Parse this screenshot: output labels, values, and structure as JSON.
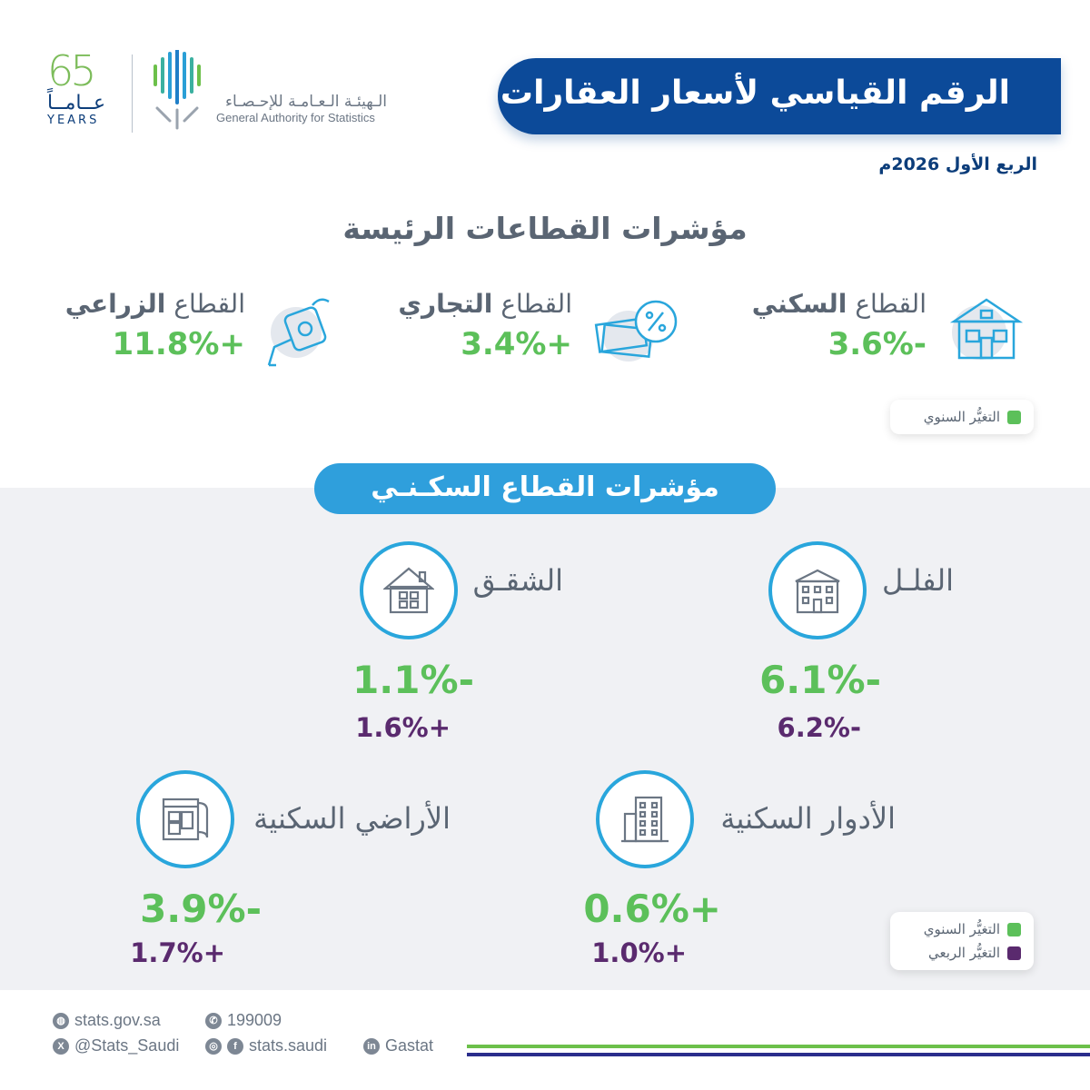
{
  "header": {
    "anniv_number": "65",
    "anniv_ar": "عــامــاً",
    "anniv_en": "YEARS",
    "org_ar": "الـهيئـة الـعـامـة للإحـصـاء",
    "org_en": "General Authority for Statistics",
    "title": "الرقم القياسي لأسعار العقارات",
    "period": "الربع الأول 2026م"
  },
  "main_sectors": {
    "heading": "مؤشرات القطاعات الرئيسة",
    "items": [
      {
        "prefix": "القطاع",
        "name": "السكني",
        "value": "-3.6%",
        "icon": "residential-building-icon"
      },
      {
        "prefix": "القطاع",
        "name": "التجاري",
        "value": "+3.4%",
        "icon": "money-percent-icon"
      },
      {
        "prefix": "القطاع",
        "name": "الزراعي",
        "value": "+11.8%",
        "icon": "watering-can-icon"
      }
    ],
    "legend_annual": "التغيُّر السنوي"
  },
  "residential": {
    "heading": "مؤشرات القطاع السكـنـي",
    "items": [
      {
        "label": "الفلـل",
        "annual": "-6.1%",
        "quarterly": "-6.2%",
        "icon": "villa-icon"
      },
      {
        "label": "الشقـق",
        "annual": "-1.1%",
        "quarterly": "+1.6%",
        "icon": "apartment-house-icon"
      },
      {
        "label": "الأدوار السكنية",
        "annual": "+0.6%",
        "quarterly": "+1.0%",
        "icon": "tower-building-icon"
      },
      {
        "label": "الأراضي السكنية",
        "annual": "-3.9%",
        "quarterly": "+1.7%",
        "icon": "land-plan-icon"
      }
    ],
    "legend_annual": "التغيُّر السنوي",
    "legend_quarterly": "التغيُّر الربعي"
  },
  "colors": {
    "annual": "#5cc05a",
    "quarterly": "#5a2a6e",
    "banner": "#0c4a99",
    "accent": "#2f9fdc"
  },
  "footer": {
    "website": "stats.gov.sa",
    "phone": "199009",
    "x_handle": "@Stats_Saudi",
    "insta_fb": "stats.saudi",
    "linkedin": "Gastat"
  }
}
